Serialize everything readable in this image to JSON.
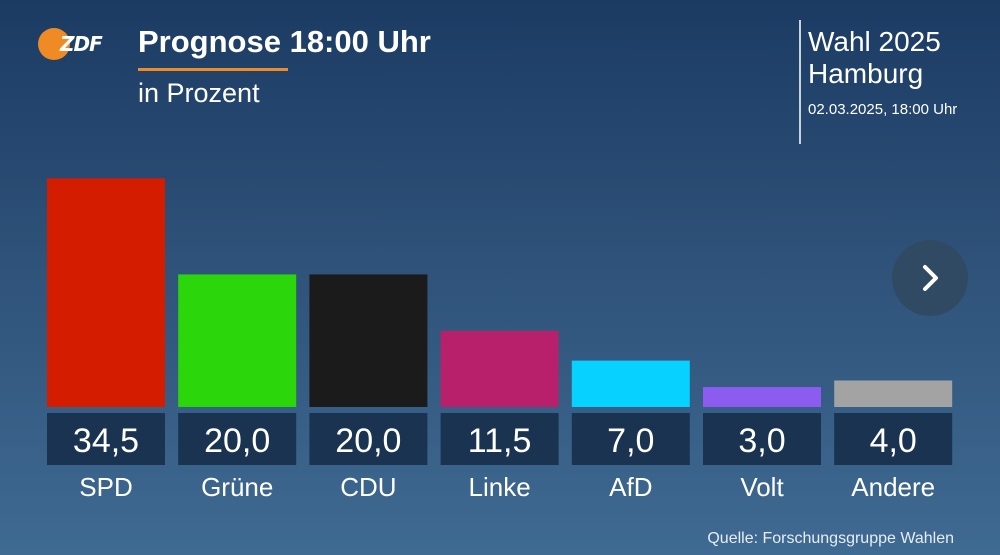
{
  "header": {
    "logo_text": "ZDF",
    "title": "Prognose 18:00 Uhr",
    "subtitle": "in Prozent"
  },
  "election": {
    "title_line1": "Wahl 2025",
    "title_line2": "Hamburg",
    "date": "02.03.2025, 18:00 Uhr"
  },
  "footer": {
    "source": "Quelle: Forschungsgruppe Wahlen"
  },
  "nav": {
    "next_icon": "chevron-right-icon"
  },
  "chart_data": {
    "type": "bar",
    "title": "Prognose 18:00 Uhr",
    "ylabel": "in Prozent",
    "xlabel": "",
    "categories": [
      "SPD",
      "Grüne",
      "CDU",
      "Linke",
      "AfD",
      "Volt",
      "Andere"
    ],
    "values": [
      34.5,
      20.0,
      20.0,
      11.5,
      7.0,
      3.0,
      4.0
    ],
    "value_labels": [
      "34,5",
      "20,0",
      "20,0",
      "11,5",
      "7,0",
      "3,0",
      "4,0"
    ],
    "colors": [
      "#d41c00",
      "#2bd60a",
      "#1b1b1b",
      "#b8206b",
      "#06d1ff",
      "#8c5cf0",
      "#a3a3a3"
    ],
    "ylim": [
      0,
      35
    ],
    "grid": false,
    "legend": "none"
  }
}
